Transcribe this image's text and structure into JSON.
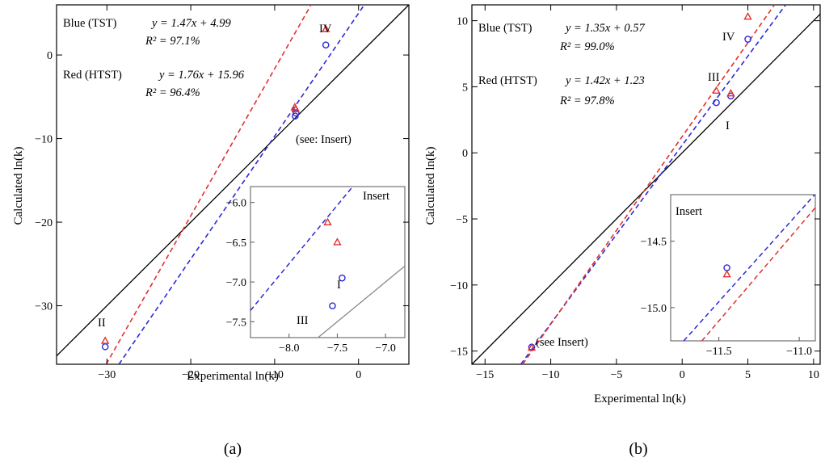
{
  "chart_data": [
    {
      "panel": "a",
      "type": "scatter",
      "subtitle": "(a)",
      "xlabel": "Experimental ln(k)",
      "ylabel": "Calculated ln(k)",
      "xlim": [
        -36,
        6
      ],
      "ylim": [
        -37,
        6
      ],
      "xticks": [
        -30,
        -20,
        -10,
        0
      ],
      "yticks": [
        -30,
        -20,
        -10,
        0
      ],
      "grid": false,
      "series": [
        {
          "name": "Blue (TST)",
          "color": "#2a2ad8",
          "marker": "circle",
          "fit": {
            "slope": 1.47,
            "intercept": 4.99,
            "r2_label": "R² = 97.1%",
            "eq_label": "y = 1.47x + 4.99"
          },
          "points": [
            {
              "label": "II",
              "x": -30.2,
              "y": -34.9
            },
            {
              "label": "III",
              "x": -7.55,
              "y": -7.3
            },
            {
              "label": "I",
              "x": -7.45,
              "y": -6.95
            },
            {
              "label": "IV",
              "x": -3.9,
              "y": 1.2
            }
          ]
        },
        {
          "name": "Red (HTST)",
          "color": "#e03030",
          "marker": "triangle",
          "fit": {
            "slope": 1.76,
            "intercept": 15.96,
            "r2_label": "R² = 96.4%",
            "eq_label": "y = 1.76x + 15.96"
          },
          "points": [
            {
              "label": "II",
              "x": -30.2,
              "y": -34.2
            },
            {
              "label": "III",
              "x": -7.6,
              "y": -6.25
            },
            {
              "label": "I",
              "x": -7.5,
              "y": -6.5
            },
            {
              "label": "IV",
              "x": -3.9,
              "y": 3.1
            }
          ]
        }
      ],
      "reference_line": "y = x",
      "point_labels": [
        "II",
        "IV"
      ],
      "note": "(see: Insert)",
      "inset": {
        "title": "Insert",
        "xlim": [
          -8.4,
          -6.8
        ],
        "ylim": [
          -7.7,
          -5.8
        ],
        "xticks": [
          -8.0,
          -7.5,
          -7.0
        ],
        "yticks": [
          -7.5,
          -7.0,
          -6.5,
          -6.0
        ],
        "point_labels": [
          "I",
          "III"
        ]
      }
    },
    {
      "panel": "b",
      "type": "scatter",
      "subtitle": "(b)",
      "xlabel": "Experimental ln(k)",
      "ylabel": "Calculated ln(k)",
      "xlim": [
        -16,
        10.5
      ],
      "ylim": [
        -16,
        11.2
      ],
      "xticks": [
        -15,
        -10,
        -5,
        0,
        5,
        10
      ],
      "yticks": [
        -15,
        -10,
        -5,
        0,
        5,
        10
      ],
      "grid": false,
      "series": [
        {
          "name": "Blue (TST)",
          "color": "#2a2ad8",
          "marker": "circle",
          "fit": {
            "slope": 1.35,
            "intercept": 0.57,
            "r2_label": "R² = 99.0%",
            "eq_label": "y = 1.35x + 0.57"
          },
          "points": [
            {
              "label": "",
              "x": -11.45,
              "y": -14.7
            },
            {
              "label": "III",
              "x": 2.6,
              "y": 3.8
            },
            {
              "label": "I",
              "x": 3.7,
              "y": 4.3
            },
            {
              "label": "IV",
              "x": 5.0,
              "y": 8.6
            }
          ]
        },
        {
          "name": "Red (HTST)",
          "color": "#e03030",
          "marker": "triangle",
          "fit": {
            "slope": 1.42,
            "intercept": 1.23,
            "r2_label": "R² = 97.8%",
            "eq_label": "y = 1.42x + 1.23"
          },
          "points": [
            {
              "label": "",
              "x": -11.45,
              "y": -14.75
            },
            {
              "label": "III",
              "x": 2.6,
              "y": 4.7
            },
            {
              "label": "I",
              "x": 3.7,
              "y": 4.5
            },
            {
              "label": "IV",
              "x": 5.0,
              "y": 10.3
            }
          ]
        }
      ],
      "reference_line": "y = x",
      "point_labels": [
        "III",
        "IV",
        "I"
      ],
      "note": "(see Insert)",
      "inset": {
        "title": "Insert",
        "xlim": [
          -11.8,
          -10.9
        ],
        "ylim": [
          -15.25,
          -14.15
        ],
        "xticks": [
          -11.5,
          -11.0
        ],
        "yticks": [
          -15.0,
          -14.5
        ],
        "point_labels": []
      }
    }
  ]
}
